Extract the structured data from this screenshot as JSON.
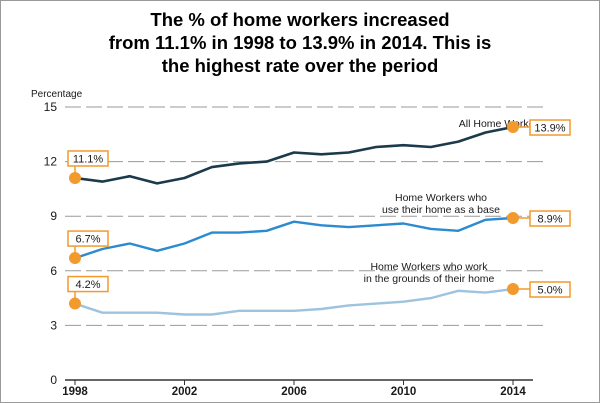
{
  "title_lines": [
    "The % of home workers increased",
    "from 11.1% in 1998 to 13.9% in 2014. This is",
    "the highest rate over the period"
  ],
  "chart_data": {
    "type": "line",
    "title": "The % of home workers increased from 11.1% in 1998 to 13.9% in 2014. This is the highest rate over the period",
    "ylabel": "Percentage",
    "xlabel": "",
    "ylim": [
      0,
      15
    ],
    "xlim": [
      1998,
      2014
    ],
    "yticks": [
      0,
      3,
      6,
      9,
      12,
      15
    ],
    "xticks": [
      1998,
      2002,
      2006,
      2010,
      2014
    ],
    "grid": true,
    "x": [
      1998,
      1999,
      2000,
      2001,
      2002,
      2003,
      2004,
      2005,
      2006,
      2007,
      2008,
      2009,
      2010,
      2011,
      2012,
      2013,
      2014
    ],
    "series": [
      {
        "name": "All Home Workers",
        "color": "#1b3a4b",
        "values": [
          11.1,
          10.9,
          11.2,
          10.8,
          11.1,
          11.7,
          11.9,
          12.0,
          12.5,
          12.4,
          12.5,
          12.8,
          12.9,
          12.8,
          13.1,
          13.6,
          13.9
        ],
        "start_label": "11.1%",
        "end_label": "13.9%"
      },
      {
        "name": "Home Workers who use their home as a base",
        "color": "#2b8ad0",
        "values": [
          6.7,
          7.2,
          7.5,
          7.1,
          7.5,
          8.1,
          8.1,
          8.2,
          8.7,
          8.5,
          8.4,
          8.5,
          8.6,
          8.3,
          8.2,
          8.8,
          8.9
        ],
        "start_label": "6.7%",
        "end_label": "8.9%"
      },
      {
        "name": "Home Workers who work in the grounds of their home",
        "color": "#9dc3de",
        "values": [
          4.2,
          3.7,
          3.7,
          3.7,
          3.6,
          3.6,
          3.8,
          3.8,
          3.8,
          3.9,
          4.1,
          4.2,
          4.3,
          4.5,
          4.9,
          4.8,
          5.0
        ],
        "start_label": "4.2%",
        "end_label": "5.0%"
      }
    ],
    "series_labels": [
      [
        "All Home Workers"
      ],
      [
        "Home Workers who",
        "use their home as a base"
      ],
      [
        "Home Workers who work",
        "in the grounds of their home"
      ]
    ],
    "marker_color": "#f29a2e"
  }
}
